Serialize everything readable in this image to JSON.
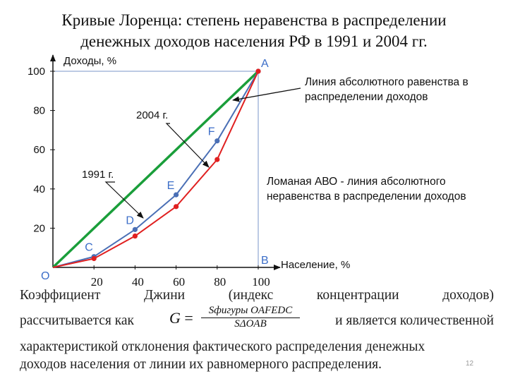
{
  "title": {
    "line1": "Кривые Лоренца: степень неравенства в распределении",
    "line2": "денежных доходов населения РФ  в 1991 и 2004 гг."
  },
  "chart_data": {
    "type": "line",
    "ylabel": "Доходы, %",
    "xlabel": "Население, %",
    "xlim": [
      0,
      100
    ],
    "ylim": [
      0,
      100
    ],
    "x_ticks": [
      "20",
      "40",
      "60",
      "80",
      "100"
    ],
    "y_ticks": [
      "20",
      "40",
      "60",
      "80",
      "100"
    ],
    "origin_label": "O",
    "series": [
      {
        "name": "",
        "color": "#1a9e3a",
        "x": [
          0,
          100
        ],
        "y": [
          0,
          100
        ]
      },
      {
        "name": "2004 г.",
        "color": "#4a6fb5",
        "x": [
          0,
          20,
          40,
          60,
          80,
          100
        ],
        "y": [
          0,
          5.5,
          19.3,
          37,
          64.5,
          100
        ]
      },
      {
        "name": "1991 г.",
        "color": "#e02020",
        "x": [
          0,
          20,
          40,
          60,
          80,
          100
        ],
        "y": [
          0,
          4.5,
          16,
          31,
          55,
          100
        ]
      }
    ],
    "point_labels": [
      {
        "text": "A",
        "x": 100,
        "y": 100
      },
      {
        "text": "B",
        "x": 100,
        "y": 0
      },
      {
        "text": "C",
        "x": 20,
        "y": 5.5
      },
      {
        "text": "D",
        "x": 40,
        "y": 19.3
      },
      {
        "text": "E",
        "x": 60,
        "y": 37
      },
      {
        "text": "F",
        "x": 80,
        "y": 64.5
      }
    ],
    "label_color": "#3c6ec8",
    "annotations": {
      "label_2004": "2004 г.",
      "label_1991": "1991 г.",
      "equality": "Линия абсолютного равенства в распределении доходов",
      "abo": "Ломаная АВО - линия абсолютного неравенства в распределении доходов"
    }
  },
  "footer": {
    "row1_words": [
      "Коэффициент",
      "Джини",
      "(индекс",
      "концентрации",
      "доходов)"
    ],
    "row2_left": "рассчитывается  как",
    "row2_right": "и  является  количественной",
    "formula_lhs": "G",
    "formula_num": "Sфигуры OAFEDC",
    "formula_den": "SΔOAB",
    "row3": "характеристикой отклонения фактического распределения денежных",
    "row4": "доходов населения от линии их равномерного распределения."
  },
  "slide_number": "12"
}
